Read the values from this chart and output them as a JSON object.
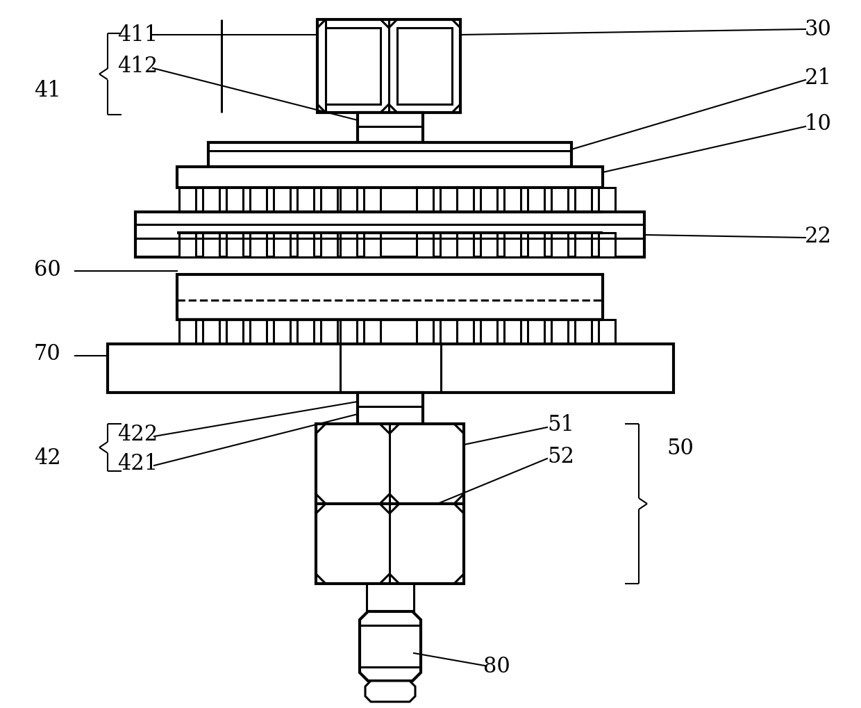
{
  "bg_color": "#ffffff",
  "lw": 2.2,
  "tlw": 3.0,
  "anno_lw": 1.5,
  "label_fs": 22
}
